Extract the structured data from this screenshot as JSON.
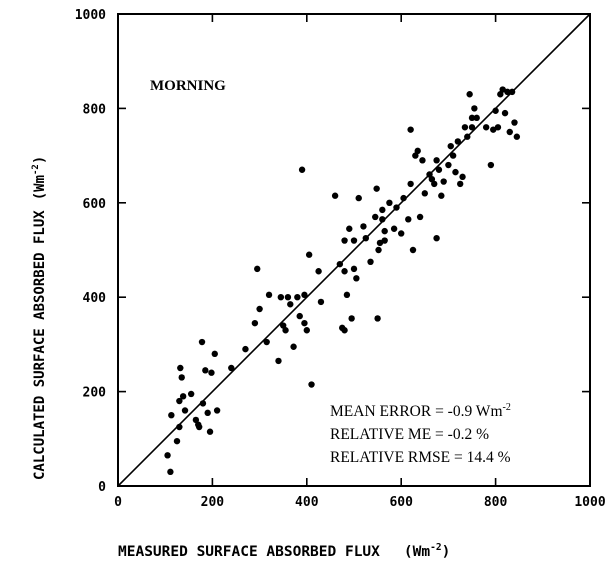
{
  "chart_data": {
    "type": "scatter",
    "title": "",
    "panel_label": "MORNING",
    "xlabel": "MEASURED SURFACE ABSORBED FLUX",
    "xlabel_unit": "(Wm",
    "xlabel_unit_sup": "-2",
    "xlabel_unit_close": ")",
    "ylabel": "CALCULATED SURFACE ABSORBED FLUX",
    "ylabel_unit": "(Wm",
    "ylabel_unit_sup": "-2",
    "ylabel_unit_close": ")",
    "xlim": [
      0,
      1000
    ],
    "ylim": [
      0,
      1000
    ],
    "xticks": [
      "0",
      "200",
      "400",
      "600",
      "800",
      "1000"
    ],
    "yticks": [
      "0",
      "200",
      "400",
      "600",
      "800",
      "1000"
    ],
    "grid": false,
    "reference_line": "1:1",
    "stats": [
      {
        "label": "MEAN ERROR = -0.9 Wm",
        "sup": "-2"
      },
      {
        "label": "RELATIVE ME = -0.2 %",
        "sup": ""
      },
      {
        "label": "RELATIVE RMSE = 14.4 %",
        "sup": ""
      }
    ],
    "points": [
      [
        105,
        65
      ],
      [
        111,
        30
      ],
      [
        113,
        150
      ],
      [
        125,
        95
      ],
      [
        130,
        125
      ],
      [
        130,
        180
      ],
      [
        132,
        250
      ],
      [
        135,
        230
      ],
      [
        138,
        190
      ],
      [
        142,
        160
      ],
      [
        155,
        195
      ],
      [
        165,
        140
      ],
      [
        170,
        130
      ],
      [
        172,
        125
      ],
      [
        178,
        305
      ],
      [
        180,
        175
      ],
      [
        185,
        245
      ],
      [
        190,
        155
      ],
      [
        195,
        115
      ],
      [
        198,
        240
      ],
      [
        205,
        280
      ],
      [
        210,
        160
      ],
      [
        240,
        250
      ],
      [
        270,
        290
      ],
      [
        290,
        345
      ],
      [
        295,
        460
      ],
      [
        300,
        375
      ],
      [
        315,
        305
      ],
      [
        320,
        405
      ],
      [
        340,
        265
      ],
      [
        345,
        400
      ],
      [
        350,
        340
      ],
      [
        355,
        330
      ],
      [
        360,
        400
      ],
      [
        365,
        385
      ],
      [
        372,
        295
      ],
      [
        380,
        400
      ],
      [
        385,
        360
      ],
      [
        390,
        670
      ],
      [
        395,
        405
      ],
      [
        395,
        345
      ],
      [
        400,
        330
      ],
      [
        405,
        490
      ],
      [
        410,
        215
      ],
      [
        425,
        455
      ],
      [
        430,
        390
      ],
      [
        460,
        615
      ],
      [
        470,
        470
      ],
      [
        475,
        335
      ],
      [
        480,
        520
      ],
      [
        480,
        330
      ],
      [
        485,
        405
      ],
      [
        490,
        545
      ],
      [
        495,
        355
      ],
      [
        500,
        520
      ],
      [
        500,
        460
      ],
      [
        505,
        440
      ],
      [
        510,
        610
      ],
      [
        520,
        550
      ],
      [
        525,
        525
      ],
      [
        535,
        475
      ],
      [
        545,
        570
      ],
      [
        548,
        630
      ],
      [
        550,
        355
      ],
      [
        552,
        500
      ],
      [
        555,
        515
      ],
      [
        560,
        585
      ],
      [
        565,
        520
      ],
      [
        565,
        540
      ],
      [
        575,
        600
      ],
      [
        585,
        545
      ],
      [
        590,
        590
      ],
      [
        600,
        535
      ],
      [
        605,
        610
      ],
      [
        615,
        565
      ],
      [
        620,
        755
      ],
      [
        620,
        640
      ],
      [
        625,
        500
      ],
      [
        630,
        700
      ],
      [
        635,
        710
      ],
      [
        640,
        570
      ],
      [
        645,
        690
      ],
      [
        650,
        620
      ],
      [
        660,
        660
      ],
      [
        665,
        650
      ],
      [
        670,
        640
      ],
      [
        675,
        690
      ],
      [
        675,
        525
      ],
      [
        680,
        670
      ],
      [
        685,
        615
      ],
      [
        690,
        645
      ],
      [
        700,
        680
      ],
      [
        705,
        720
      ],
      [
        715,
        665
      ],
      [
        720,
        730
      ],
      [
        725,
        640
      ],
      [
        730,
        655
      ],
      [
        735,
        760
      ],
      [
        740,
        740
      ],
      [
        745,
        830
      ],
      [
        750,
        780
      ],
      [
        755,
        800
      ],
      [
        760,
        780
      ],
      [
        780,
        760
      ],
      [
        790,
        680
      ],
      [
        795,
        755
      ],
      [
        800,
        795
      ],
      [
        805,
        760
      ],
      [
        810,
        830
      ],
      [
        815,
        840
      ],
      [
        820,
        790
      ],
      [
        825,
        835
      ],
      [
        830,
        750
      ],
      [
        835,
        835
      ],
      [
        840,
        770
      ],
      [
        845,
        740
      ],
      [
        750,
        760
      ],
      [
        710,
        700
      ],
      [
        560,
        565
      ],
      [
        480,
        455
      ]
    ]
  }
}
